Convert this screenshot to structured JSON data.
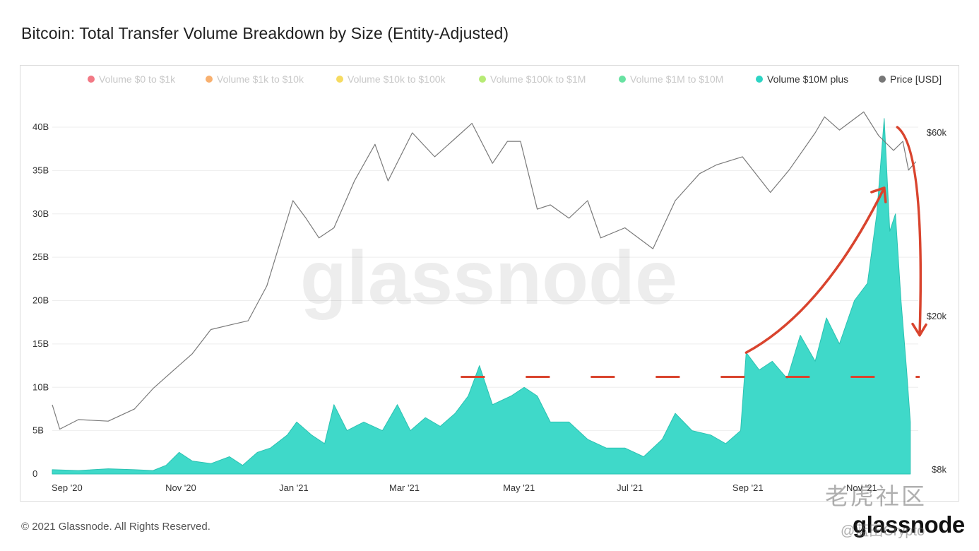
{
  "title": "Bitcoin: Total Transfer Volume Breakdown by Size (Entity-Adjusted)",
  "footer": "© 2021 Glassnode. All Rights Reserved.",
  "brand": "glassnode",
  "watermark_center": "glassnode",
  "watermark_cn": "老虎社区",
  "watermark_user": "@蓝田Crypto",
  "legend": [
    {
      "label": "Volume $0 to $1k",
      "color": "#ee4c5c",
      "active": false
    },
    {
      "label": "Volume $1k to $10k",
      "color": "#f5953f",
      "active": false
    },
    {
      "label": "Volume $10k to $100k",
      "color": "#f3cf2c",
      "active": false
    },
    {
      "label": "Volume $100k to $1M",
      "color": "#9fe447",
      "active": false
    },
    {
      "label": "Volume $1M to $10M",
      "color": "#35d883",
      "active": false
    },
    {
      "label": "Volume $10M plus",
      "color": "#2dd4c4",
      "active": true
    },
    {
      "label": "Price [USD]",
      "color": "#777777",
      "active": true
    }
  ],
  "colors": {
    "volume_fill": "#3fd9c9",
    "volume_stroke": "#2bc2b2",
    "price_line": "#7a7a7a",
    "annotation": "#d9442e",
    "grid": "#eeeeee"
  },
  "chart_data": {
    "type": "area",
    "x_axis": {
      "type": "date",
      "range": [
        "2020-09-01",
        "2021-12-10"
      ],
      "ticks": [
        {
          "date": "2020-09-01",
          "label": "Sep '20"
        },
        {
          "date": "2020-11-01",
          "label": "Nov '20"
        },
        {
          "date": "2021-01-01",
          "label": "Jan '21"
        },
        {
          "date": "2021-03-01",
          "label": "Mar '21"
        },
        {
          "date": "2021-05-01",
          "label": "May '21"
        },
        {
          "date": "2021-07-01",
          "label": "Jul '21"
        },
        {
          "date": "2021-09-01",
          "label": "Sep '21"
        },
        {
          "date": "2021-11-01",
          "label": "Nov '21"
        }
      ]
    },
    "y_left": {
      "unit": "USD",
      "range": [
        0,
        40000000000
      ],
      "ticks": [
        {
          "value": 0,
          "label": "0"
        },
        {
          "value": 5000000000,
          "label": "5B"
        },
        {
          "value": 10000000000,
          "label": "10B"
        },
        {
          "value": 15000000000,
          "label": "15B"
        },
        {
          "value": 20000000000,
          "label": "20B"
        },
        {
          "value": 25000000000,
          "label": "25B"
        },
        {
          "value": 30000000000,
          "label": "30B"
        },
        {
          "value": 35000000000,
          "label": "35B"
        },
        {
          "value": 40000000000,
          "label": "40B"
        }
      ]
    },
    "y_right": {
      "scale": "log",
      "range": [
        8000,
        60000
      ],
      "ticks": [
        {
          "value": 60000,
          "label": "$60k"
        },
        {
          "value": 20000,
          "label": "$20k"
        },
        {
          "value": 8000,
          "label": "$8k"
        }
      ]
    },
    "grid": true,
    "legend_position": "top",
    "series": [
      {
        "name": "Volume $10M plus",
        "values": [
          [
            "2020-09-01",
            500000000.0
          ],
          [
            "2020-09-15",
            400000000.0
          ],
          [
            "2020-10-01",
            600000000.0
          ],
          [
            "2020-10-15",
            500000000.0
          ],
          [
            "2020-10-25",
            400000000.0
          ],
          [
            "2020-11-01",
            1000000000.0
          ],
          [
            "2020-11-08",
            2500000000.0
          ],
          [
            "2020-11-15",
            1500000000.0
          ],
          [
            "2020-11-25",
            1200000000.0
          ],
          [
            "2020-12-05",
            2000000000.0
          ],
          [
            "2020-12-12",
            1000000000.0
          ],
          [
            "2020-12-20",
            2500000000.0
          ],
          [
            "2020-12-27",
            3000000000.0
          ],
          [
            "2021-01-05",
            4500000000.0
          ],
          [
            "2021-01-10",
            6000000000.0
          ],
          [
            "2021-01-18",
            4500000000.0
          ],
          [
            "2021-01-25",
            3500000000.0
          ],
          [
            "2021-01-30",
            8000000000.0
          ],
          [
            "2021-02-06",
            5000000000.0
          ],
          [
            "2021-02-15",
            6000000000.0
          ],
          [
            "2021-02-25",
            5000000000.0
          ],
          [
            "2021-03-05",
            8000000000.0
          ],
          [
            "2021-03-12",
            5000000000.0
          ],
          [
            "2021-03-20",
            6500000000.0
          ],
          [
            "2021-03-28",
            5500000000.0
          ],
          [
            "2021-04-05",
            7000000000.0
          ],
          [
            "2021-04-12",
            9000000000.0
          ],
          [
            "2021-04-18",
            12500000000.0
          ],
          [
            "2021-04-25",
            8000000000.0
          ],
          [
            "2021-05-05",
            9000000000.0
          ],
          [
            "2021-05-12",
            10000000000.0
          ],
          [
            "2021-05-19",
            9000000000.0
          ],
          [
            "2021-05-26",
            6000000000.0
          ],
          [
            "2021-06-05",
            6000000000.0
          ],
          [
            "2021-06-15",
            4000000000.0
          ],
          [
            "2021-06-25",
            3000000000.0
          ],
          [
            "2021-07-05",
            3000000000.0
          ],
          [
            "2021-07-15",
            2000000000.0
          ],
          [
            "2021-07-25",
            4000000000.0
          ],
          [
            "2021-08-01",
            7000000000.0
          ],
          [
            "2021-08-10",
            5000000000.0
          ],
          [
            "2021-08-20",
            4500000000.0
          ],
          [
            "2021-08-28",
            3500000000.0
          ],
          [
            "2021-09-05",
            5000000000.0
          ],
          [
            "2021-09-08",
            14000000000.0
          ],
          [
            "2021-09-15",
            12000000000.0
          ],
          [
            "2021-09-22",
            13000000000.0
          ],
          [
            "2021-09-30",
            11000000000.0
          ],
          [
            "2021-10-07",
            16000000000.0
          ],
          [
            "2021-10-15",
            13000000000.0
          ],
          [
            "2021-10-21",
            18000000000.0
          ],
          [
            "2021-10-28",
            15000000000.0
          ],
          [
            "2021-11-05",
            20000000000.0
          ],
          [
            "2021-11-12",
            22000000000.0
          ],
          [
            "2021-11-17",
            30000000000.0
          ],
          [
            "2021-11-21",
            41000000000.0
          ],
          [
            "2021-11-24",
            28000000000.0
          ],
          [
            "2021-11-27",
            30000000000.0
          ],
          [
            "2021-11-30",
            20000000000.0
          ],
          [
            "2021-12-03",
            12000000000.0
          ],
          [
            "2021-12-05",
            6000000000.0
          ]
        ]
      },
      {
        "name": "Price [USD]",
        "values": [
          [
            "2020-09-01",
            11800
          ],
          [
            "2020-09-05",
            10200
          ],
          [
            "2020-09-15",
            10800
          ],
          [
            "2020-10-01",
            10700
          ],
          [
            "2020-10-15",
            11500
          ],
          [
            "2020-10-25",
            13000
          ],
          [
            "2020-11-05",
            14500
          ],
          [
            "2020-11-15",
            16000
          ],
          [
            "2020-11-25",
            18500
          ],
          [
            "2020-12-05",
            19000
          ],
          [
            "2020-12-15",
            19500
          ],
          [
            "2020-12-25",
            24000
          ],
          [
            "2021-01-08",
            40000
          ],
          [
            "2021-01-15",
            36000
          ],
          [
            "2021-01-22",
            32000
          ],
          [
            "2021-01-30",
            34000
          ],
          [
            "2021-02-10",
            45000
          ],
          [
            "2021-02-21",
            56000
          ],
          [
            "2021-02-28",
            45000
          ],
          [
            "2021-03-13",
            60000
          ],
          [
            "2021-03-25",
            52000
          ],
          [
            "2021-04-05",
            58000
          ],
          [
            "2021-04-14",
            63500
          ],
          [
            "2021-04-25",
            50000
          ],
          [
            "2021-05-03",
            57000
          ],
          [
            "2021-05-10",
            57000
          ],
          [
            "2021-05-19",
            38000
          ],
          [
            "2021-05-26",
            39000
          ],
          [
            "2021-06-05",
            36000
          ],
          [
            "2021-06-15",
            40000
          ],
          [
            "2021-06-22",
            32000
          ],
          [
            "2021-07-05",
            34000
          ],
          [
            "2021-07-20",
            30000
          ],
          [
            "2021-08-01",
            40000
          ],
          [
            "2021-08-14",
            47000
          ],
          [
            "2021-08-23",
            49500
          ],
          [
            "2021-09-06",
            52000
          ],
          [
            "2021-09-21",
            42000
          ],
          [
            "2021-10-01",
            48000
          ],
          [
            "2021-10-15",
            60000
          ],
          [
            "2021-10-20",
            66000
          ],
          [
            "2021-10-28",
            61000
          ],
          [
            "2021-11-10",
            68000
          ],
          [
            "2021-11-18",
            59000
          ],
          [
            "2021-11-26",
            54000
          ],
          [
            "2021-12-01",
            57000
          ],
          [
            "2021-12-04",
            48000
          ],
          [
            "2021-12-08",
            50500
          ]
        ]
      }
    ],
    "annotations": [
      {
        "type": "dashed-line",
        "y_value": 11200000000,
        "from": "2021-04-08",
        "to": "2021-12-10"
      },
      {
        "type": "arrow-up",
        "from": [
          "2021-09-08",
          14000000000
        ],
        "to": [
          "2021-11-21",
          33000000000
        ]
      },
      {
        "type": "arrow-down",
        "from": [
          "2021-11-28",
          40000000000
        ],
        "to": [
          "2021-12-10",
          16000000000
        ]
      }
    ]
  }
}
